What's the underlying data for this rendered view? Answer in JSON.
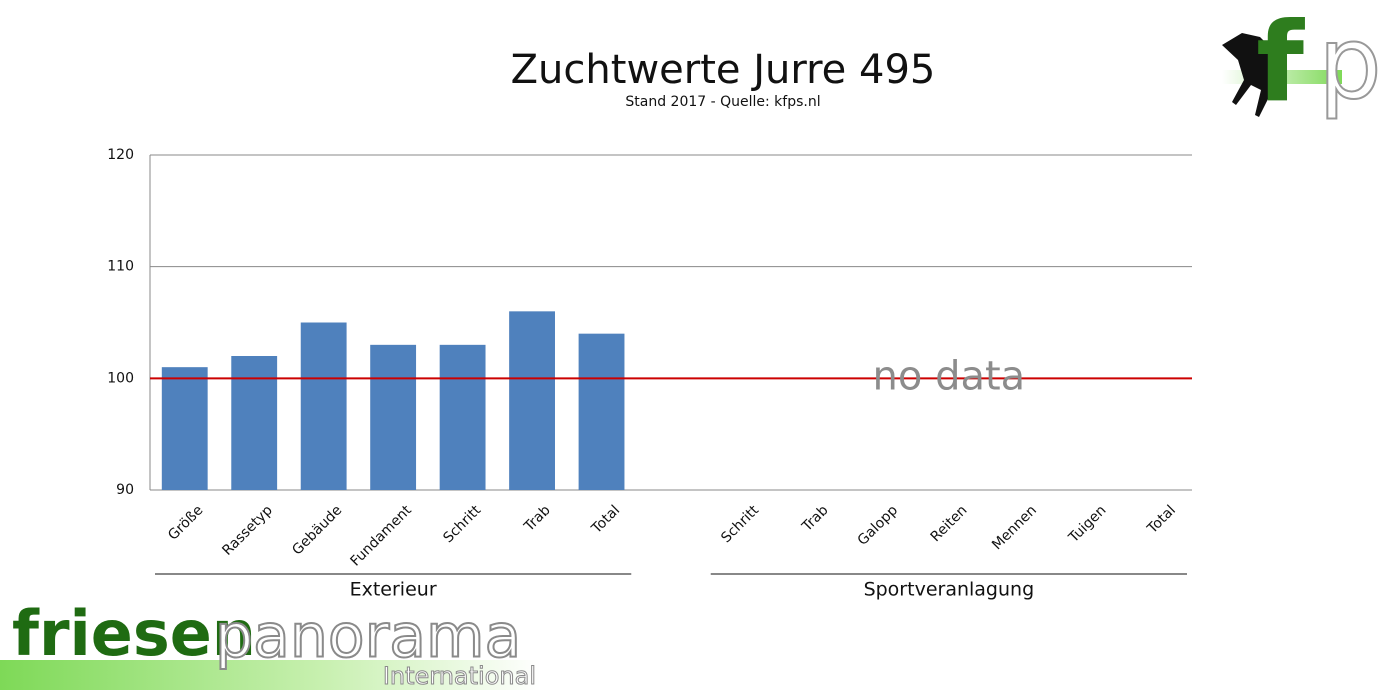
{
  "chart_data": {
    "type": "bar",
    "title": "Zuchtwerte Jurre 495",
    "subtitle": "Stand 2017 - Quelle: kfps.nl",
    "categories": [
      "Größe",
      "Rassetyp",
      "Gebäude",
      "Fundament",
      "Schritt",
      "Trab",
      "Total",
      null,
      "Schritt",
      "Trab",
      "Galopp",
      "Reiten",
      "Mennen",
      "Tuigen",
      "Total"
    ],
    "values": [
      101,
      102,
      105,
      103,
      103,
      106,
      104,
      null,
      null,
      null,
      null,
      null,
      null,
      null,
      null
    ],
    "color": "#4f81bd",
    "group_labels": [
      "Exterieur",
      "Sportveranlagung"
    ],
    "ylim": [
      90,
      120
    ],
    "yticks": [
      90,
      100,
      110,
      120
    ],
    "grid": true,
    "reference_line": {
      "value": 100,
      "color": "#cc0000"
    },
    "annotation": "no data"
  },
  "branding": {
    "logo_f": "f",
    "logo_p": "p",
    "wordmark_1": "friesen",
    "wordmark_2": "panorama",
    "wordmark_3": "International"
  }
}
